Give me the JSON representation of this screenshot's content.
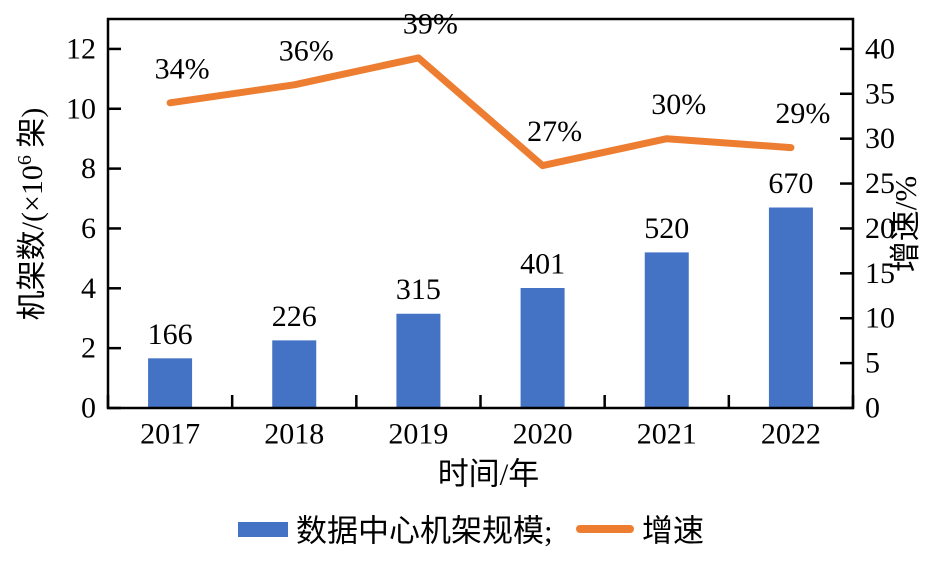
{
  "chart_data": {
    "type": "bar+line",
    "categories": [
      "2017",
      "2018",
      "2019",
      "2020",
      "2021",
      "2022"
    ],
    "xlabel": "时间/年",
    "left_axis": {
      "label_prefix": "机架数/(×10",
      "label_sup": "6",
      "label_suffix": " 架)",
      "ticks": [
        0,
        2,
        4,
        6,
        8,
        10,
        12
      ],
      "range": [
        0,
        13
      ]
    },
    "right_axis": {
      "label": "增速/%",
      "ticks": [
        0,
        5,
        10,
        15,
        20,
        25,
        30,
        35,
        40
      ],
      "range": [
        0,
        43.33
      ]
    },
    "series": [
      {
        "name": "数据中心机架规模",
        "type": "bar",
        "axis": "left",
        "color": "#4472C4",
        "values": [
          1.66,
          2.26,
          3.15,
          4.01,
          5.2,
          6.7
        ],
        "labels": [
          "166",
          "226",
          "315",
          "401",
          "520",
          "670"
        ]
      },
      {
        "name": "增速",
        "type": "line",
        "axis": "right",
        "color": "#ED7D31",
        "values": [
          34,
          36,
          39,
          27,
          30,
          29
        ],
        "labels": [
          "34%",
          "36%",
          "39%",
          "27%",
          "30%",
          "29%"
        ]
      }
    ],
    "legend": {
      "entries": [
        {
          "label": "数据中心机架规模;",
          "swatch": "bar"
        },
        {
          "label": "增速",
          "swatch": "line"
        }
      ]
    }
  },
  "colors": {
    "bar": "#4472C4",
    "line": "#ED7D31",
    "axis": "#000000",
    "text": "#000000",
    "background": "#ffffff"
  }
}
